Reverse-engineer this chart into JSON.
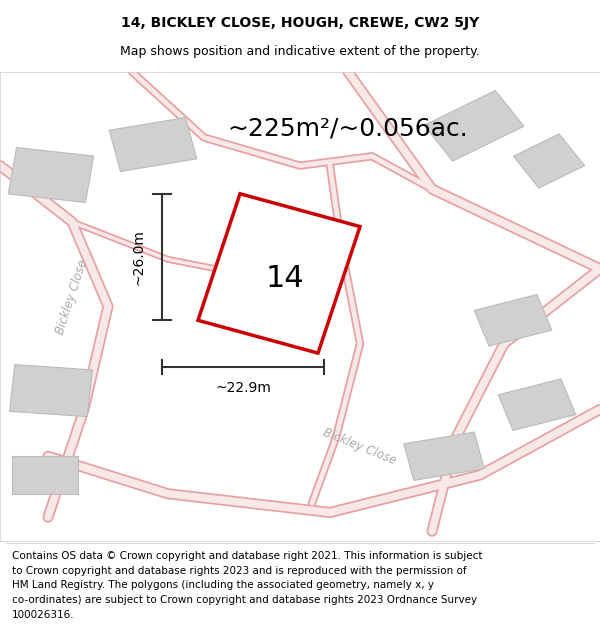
{
  "title_line1": "14, BICKLEY CLOSE, HOUGH, CREWE, CW2 5JY",
  "title_line2": "Map shows position and indicative extent of the property.",
  "area_text": "~225m²/~0.056ac.",
  "number_label": "14",
  "dim_width": "~22.9m",
  "dim_height": "~26.0m",
  "footer_lines": [
    "Contains OS data © Crown copyright and database right 2021. This information is subject",
    "to Crown copyright and database rights 2023 and is reproduced with the permission of",
    "HM Land Registry. The polygons (including the associated geometry, namely x, y",
    "co-ordinates) are subject to Crown copyright and database rights 2023 Ordnance Survey",
    "100026316."
  ],
  "bg_color": "#ffffff",
  "map_bg": "#f0f0f0",
  "road_color": "#e8a0a0",
  "road_fill": "#f8e8e8",
  "plot_outline_color": "#cc0000",
  "building_color": "#d0d0d0",
  "building_edge": "#bbbbbb",
  "road_label_color": "#aaaaaa",
  "dim_line_color": "#333333",
  "title_fontsize": 10,
  "subtitle_fontsize": 9,
  "area_fontsize": 18,
  "number_fontsize": 22,
  "dim_fontsize": 10,
  "footer_fontsize": 7.5
}
